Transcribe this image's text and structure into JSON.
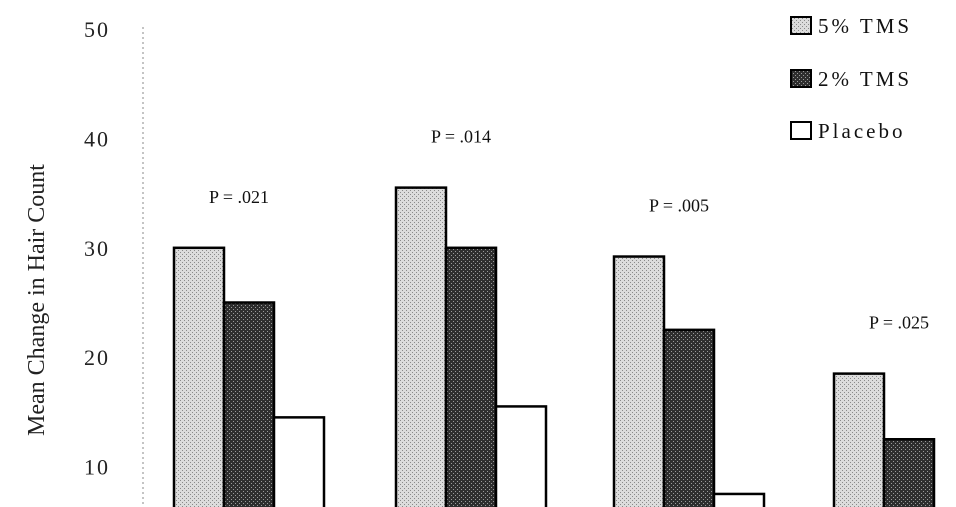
{
  "chart_data": {
    "type": "bar",
    "title": "",
    "xlabel": "",
    "ylabel": "Mean Change in Hair Count",
    "ylim": [
      0,
      50
    ],
    "visible_ylim": [
      6,
      50
    ],
    "yticks": [
      10,
      20,
      30,
      40,
      50
    ],
    "grid": false,
    "legend_position": "top-right",
    "groups": 4,
    "series": [
      {
        "name": "5% TMS",
        "values": [
          30,
          35.5,
          29.2,
          18.5
        ],
        "color": "#c8c8c8",
        "pattern": "light-stipple"
      },
      {
        "name": "2% TMS",
        "values": [
          25,
          30,
          22.5,
          12.5
        ],
        "color": "#3c3c3c",
        "pattern": "dark-stipple"
      },
      {
        "name": "Placebo",
        "values": [
          14.5,
          15.5,
          7.5,
          null
        ],
        "color": "#ffffff",
        "pattern": "none"
      }
    ],
    "annotations": [
      "P = .021",
      "P = .014",
      "P = .005",
      "P = .025"
    ]
  }
}
